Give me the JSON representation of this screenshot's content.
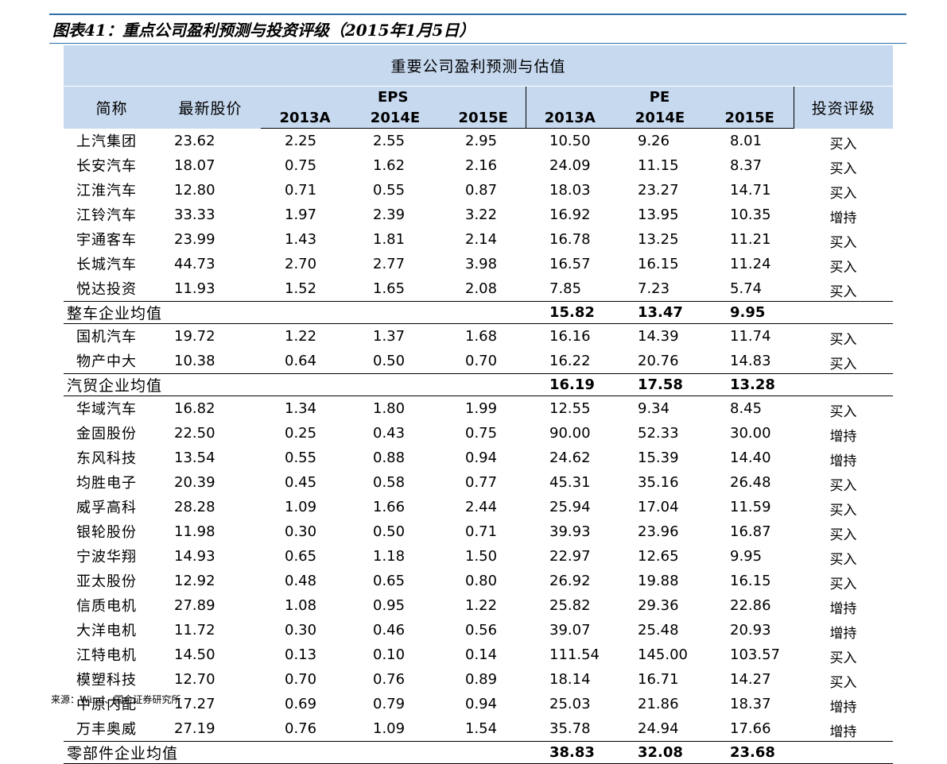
{
  "caption": "图表41：重点公司盈利预测与投资评级（2015年1月5日）",
  "table": {
    "banner": "重要公司盈利预测与估值",
    "headers": {
      "name": "简称",
      "price": "最新股价",
      "eps": "EPS",
      "pe": "PE",
      "rating": "投资评级",
      "y2013": "2013A",
      "y2014": "2014E",
      "y2015": "2015E"
    },
    "groups": [
      {
        "rows": [
          [
            "上汽集团",
            "23.62",
            "2.25",
            "2.55",
            "2.95",
            "10.50",
            "9.26",
            "8.01",
            "买入"
          ],
          [
            "长安汽车",
            "18.07",
            "0.75",
            "1.62",
            "2.16",
            "24.09",
            "11.15",
            "8.37",
            "买入"
          ],
          [
            "江淮汽车",
            "12.80",
            "0.71",
            "0.55",
            "0.87",
            "18.03",
            "23.27",
            "14.71",
            "买入"
          ],
          [
            "江铃汽车",
            "33.33",
            "1.97",
            "2.39",
            "3.22",
            "16.92",
            "13.95",
            "10.35",
            "增持"
          ],
          [
            "宇通客车",
            "23.99",
            "1.43",
            "1.81",
            "2.14",
            "16.78",
            "13.25",
            "11.21",
            "买入"
          ],
          [
            "长城汽车",
            "44.73",
            "2.70",
            "2.77",
            "3.98",
            "16.57",
            "16.15",
            "11.24",
            "买入"
          ],
          [
            "悦达投资",
            "11.93",
            "1.52",
            "1.65",
            "2.08",
            "7.85",
            "7.23",
            "5.74",
            "买入"
          ]
        ],
        "avg": {
          "label": "整车企业均值",
          "pe2013": "15.82",
          "pe2014": "13.47",
          "pe2015": "9.95"
        }
      },
      {
        "rows": [
          [
            "国机汽车",
            "19.72",
            "1.22",
            "1.37",
            "1.68",
            "16.16",
            "14.39",
            "11.74",
            "买入"
          ],
          [
            "物产中大",
            "10.38",
            "0.64",
            "0.50",
            "0.70",
            "16.22",
            "20.76",
            "14.83",
            "买入"
          ]
        ],
        "avg": {
          "label": "汽贸企业均值",
          "pe2013": "16.19",
          "pe2014": "17.58",
          "pe2015": "13.28"
        }
      },
      {
        "rows": [
          [
            "华域汽车",
            "16.82",
            "1.34",
            "1.80",
            "1.99",
            "12.55",
            "9.34",
            "8.45",
            "买入"
          ],
          [
            "金固股份",
            "22.50",
            "0.25",
            "0.43",
            "0.75",
            "90.00",
            "52.33",
            "30.00",
            "增持"
          ],
          [
            "东风科技",
            "13.54",
            "0.55",
            "0.88",
            "0.94",
            "24.62",
            "15.39",
            "14.40",
            "增持"
          ],
          [
            "均胜电子",
            "20.39",
            "0.45",
            "0.58",
            "0.77",
            "45.31",
            "35.16",
            "26.48",
            "买入"
          ],
          [
            "威孚高科",
            "28.28",
            "1.09",
            "1.66",
            "2.44",
            "25.94",
            "17.04",
            "11.59",
            "买入"
          ],
          [
            "银轮股份",
            "11.98",
            "0.30",
            "0.50",
            "0.71",
            "39.93",
            "23.96",
            "16.87",
            "买入"
          ],
          [
            "宁波华翔",
            "14.93",
            "0.65",
            "1.18",
            "1.50",
            "22.97",
            "12.65",
            "9.95",
            "买入"
          ],
          [
            "亚太股份",
            "12.92",
            "0.48",
            "0.65",
            "0.80",
            "26.92",
            "19.88",
            "16.15",
            "买入"
          ],
          [
            "信质电机",
            "27.89",
            "1.08",
            "0.95",
            "1.22",
            "25.82",
            "29.36",
            "22.86",
            "增持"
          ],
          [
            "大洋电机",
            "11.72",
            "0.30",
            "0.46",
            "0.56",
            "39.07",
            "25.48",
            "20.93",
            "增持"
          ],
          [
            "江特电机",
            "14.50",
            "0.13",
            "0.10",
            "0.14",
            "111.54",
            "145.00",
            "103.57",
            "买入"
          ],
          [
            "模塑科技",
            "12.70",
            "0.70",
            "0.76",
            "0.89",
            "18.14",
            "16.71",
            "14.27",
            "买入"
          ],
          [
            "中原内配",
            "17.27",
            "0.69",
            "0.79",
            "0.94",
            "25.03",
            "21.86",
            "18.37",
            "增持"
          ],
          [
            "万丰奥威",
            "27.19",
            "0.76",
            "1.09",
            "1.54",
            "35.78",
            "24.94",
            "17.66",
            "增持"
          ]
        ],
        "avg": {
          "label": "零部件企业均值",
          "pe2013": "38.83",
          "pe2014": "32.08",
          "pe2015": "23.68"
        }
      }
    ]
  },
  "source": "来源：Wind、国金证券研究所"
}
